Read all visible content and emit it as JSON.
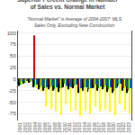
{
  "chart_data": {
    "type": "bar",
    "title": "Superior Percent Change in Number of Sales vs. Normal Market",
    "subtitle": "\"Normal Market\" is Average of 2004-2007: MLS Sales Only, Excluding New Construction",
    "categories": [
      "2001",
      "2002",
      "2003",
      "2004",
      "2005",
      "2006",
      "2007",
      "2008",
      "2009",
      "2010",
      "2011",
      "2012",
      "2013",
      "2014",
      "2015",
      "2016",
      "2017",
      "2018",
      "2019",
      "2020",
      "2021",
      "2022",
      "2023"
    ],
    "series": [
      {
        "color": "#000000",
        "values": [
          -15,
          -10,
          -8,
          -18,
          -22,
          -25,
          -22,
          -25,
          -28,
          -18,
          -22,
          -20,
          -30,
          -25,
          -28,
          -20,
          -25,
          -22,
          -28,
          -30,
          -18,
          -25,
          -30
        ]
      },
      {
        "color": "#cc0000",
        "values": [
          -8,
          -5,
          -4,
          95,
          -15,
          -18,
          -12,
          -15,
          -10,
          -8,
          -10,
          -12,
          -18,
          -15,
          -20,
          -14,
          -18,
          -15,
          -20,
          -22,
          -10,
          -18,
          -22
        ]
      },
      {
        "color": "#009900",
        "values": [
          -12,
          -8,
          -6,
          -15,
          -18,
          -20,
          -18,
          -22,
          -20,
          -10,
          -15,
          -15,
          -22,
          -18,
          -22,
          -18,
          -20,
          -18,
          -22,
          -25,
          -14,
          -20,
          -25
        ]
      },
      {
        "color": "#ffff00",
        "values": [
          -10,
          -7,
          -5,
          -20,
          -28,
          -60,
          -65,
          -70,
          -78,
          -55,
          -72,
          -68,
          -80,
          -70,
          -75,
          -60,
          -70,
          -65,
          -72,
          -78,
          -55,
          -68,
          -75
        ]
      },
      {
        "color": "#0055cc",
        "values": [
          -6,
          -4,
          -3,
          -12,
          -15,
          -18,
          -15,
          -18,
          -20,
          -15,
          -18,
          -12,
          -20,
          -18,
          -20,
          -12,
          -16,
          -14,
          -18,
          -20,
          -10,
          -16,
          -20
        ]
      }
    ],
    "ylim": [
      -90,
      105
    ],
    "yticks": [
      -75,
      -50,
      -25,
      0,
      25,
      50,
      75,
      100
    ],
    "grid": true
  }
}
